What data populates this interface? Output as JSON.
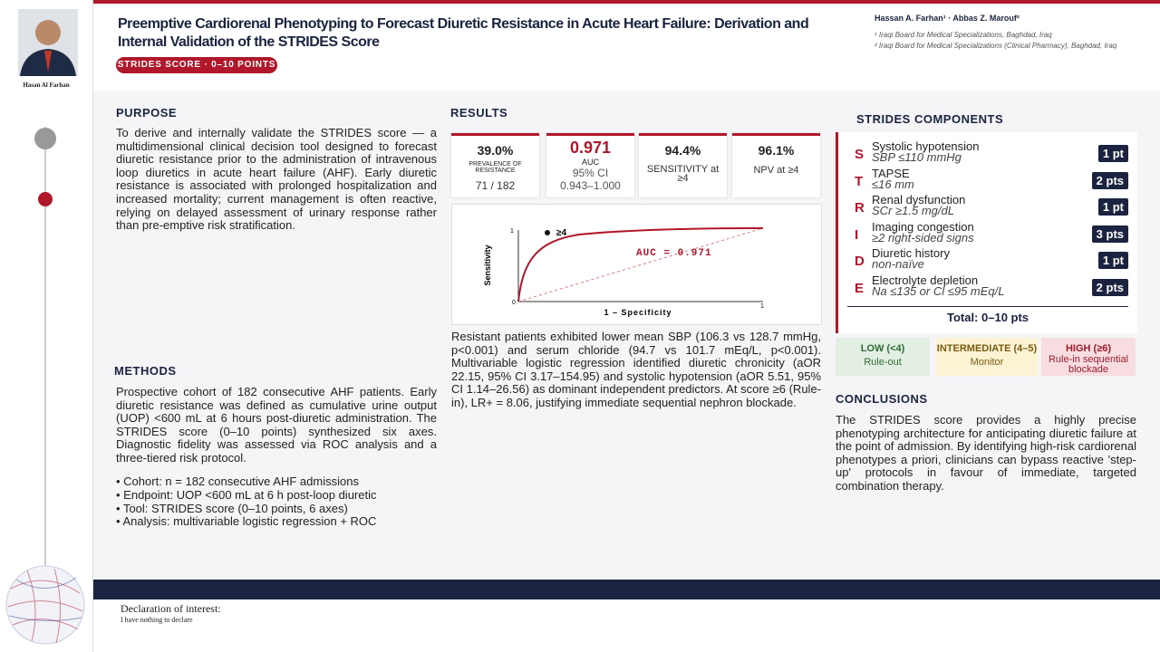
{
  "sidebar": {
    "name": "Hasan Al Farhan"
  },
  "header": {
    "title": "Preemptive Cardiorenal Phenotyping to Forecast Diuretic Resistance in Acute Heart Failure: Derivation and Internal Validation of the STRIDES Score",
    "badge": "STRIDES SCORE · 0–10 POINTS",
    "authors": "Hassan A. Farhan¹ · Abbas Z. Marouf²",
    "affiliations": [
      "¹ Iraqi Board for Medical Specializations, Baghdad, Iraq",
      "² Iraqi Board for Medical Specializations (Clinical Pharmacy), Baghdad, Iraq"
    ]
  },
  "purpose": {
    "heading": "PURPOSE",
    "text": "To derive and internally validate the STRIDES score — a multidimensional clinical decision tool designed to forecast diuretic resistance prior to the administration of intravenous loop diuretics in acute heart failure (AHF). Early diuretic resistance is associated with prolonged hospitalization and increased mortality; current management is often reactive, relying on delayed assessment of urinary response rather than pre-emptive risk stratification."
  },
  "methods": {
    "heading": "METHODS",
    "text": "Prospective cohort of 182 consecutive AHF patients. Early diuretic resistance was defined as cumulative urine output (UOP) <600 mL at 6 hours post-diuretic administration. The STRIDES score (0–10 points) synthesized six axes. Diagnostic fidelity was assessed via ROC analysis and a three-tiered risk protocol.",
    "bullets": [
      "Cohort: n = 182 consecutive AHF admissions",
      "Endpoint: UOP <600 mL at 6 h post-loop diuretic",
      "Tool: STRIDES score (0–10 points, 6 axes)",
      "Analysis: multivariable logistic regression + ROC"
    ]
  },
  "results": {
    "heading": "RESULTS",
    "stats": [
      {
        "value": "39.0%",
        "label": "PREVALENCE OF RESISTANCE",
        "detail": "71 / 182"
      },
      {
        "value": "0.971",
        "label": "AUC",
        "detail": "95% CI",
        "detail2": "0.943–1.000"
      },
      {
        "value": "94.4%",
        "label": "SENSITIVITY at ≥4"
      },
      {
        "value": "96.1%",
        "label": "NPV at ≥4"
      }
    ],
    "roc": {
      "y_label": "Sensitivity",
      "x_label": "1 – Specificity",
      "marker": "≥4",
      "auc": "AUC = 0.971",
      "origin": "0",
      "y_max": "1",
      "x_max": "1"
    },
    "text": "Resistant patients exhibited lower mean SBP (106.3 vs 128.7 mmHg, p<0.001) and serum chloride (94.7 vs 101.7 mEq/L, p<0.001). Multivariable logistic regression identified diuretic chronicity (aOR 22.15, 95% CI 3.17–154.95) and systolic hypotension (aOR 5.51, 95% CI 1.14–26.56) as dominant independent predictors. At score ≥6 (Rule-in), LR+ = 8.06, justifying immediate sequential nephron blockade."
  },
  "components": {
    "heading": "STRIDES COMPONENTS",
    "rows": [
      {
        "letter": "S",
        "name": "Systolic hypotension",
        "criterion": "SBP ≤110 mmHg",
        "points": "1 pt"
      },
      {
        "letter": "T",
        "name": "TAPSE",
        "criterion": "≤16 mm",
        "points": "2 pts"
      },
      {
        "letter": "R",
        "name": "Renal dysfunction",
        "criterion": "SCr ≥1.5 mg/dL",
        "points": "1 pt"
      },
      {
        "letter": "I",
        "name": "Imaging congestion",
        "criterion": "≥2 right-sided signs",
        "points": "3 pts"
      },
      {
        "letter": "D",
        "name": "Diuretic history",
        "criterion": "non-naïve",
        "points": "1 pt"
      },
      {
        "letter": "E",
        "name": "Electrolyte depletion",
        "criterion": "Na ≤135 or Cl ≤95 mEq/L",
        "points": "2 pts"
      }
    ],
    "total": "Total: 0–10 pts"
  },
  "risk": [
    {
      "label": "LOW (<4)",
      "action": "Rule-out"
    },
    {
      "label": "INTERMEDIATE (4–5)",
      "action": "Monitor"
    },
    {
      "label": "HIGH (≥6)",
      "action": "Rule-in sequential blockade"
    }
  ],
  "conclusions": {
    "heading": "CONCLUSIONS",
    "text": "The STRIDES score provides a highly precise phenotyping architecture for anticipating diuretic failure at the point of admission. By identifying high-risk cardiorenal phenotypes a priori, clinicians can bypass reactive 'step-up' protocols in favour of immediate, targeted combination therapy."
  },
  "footer": {
    "heading": "Declaration of interest:",
    "text": "I have nothing to declare"
  }
}
